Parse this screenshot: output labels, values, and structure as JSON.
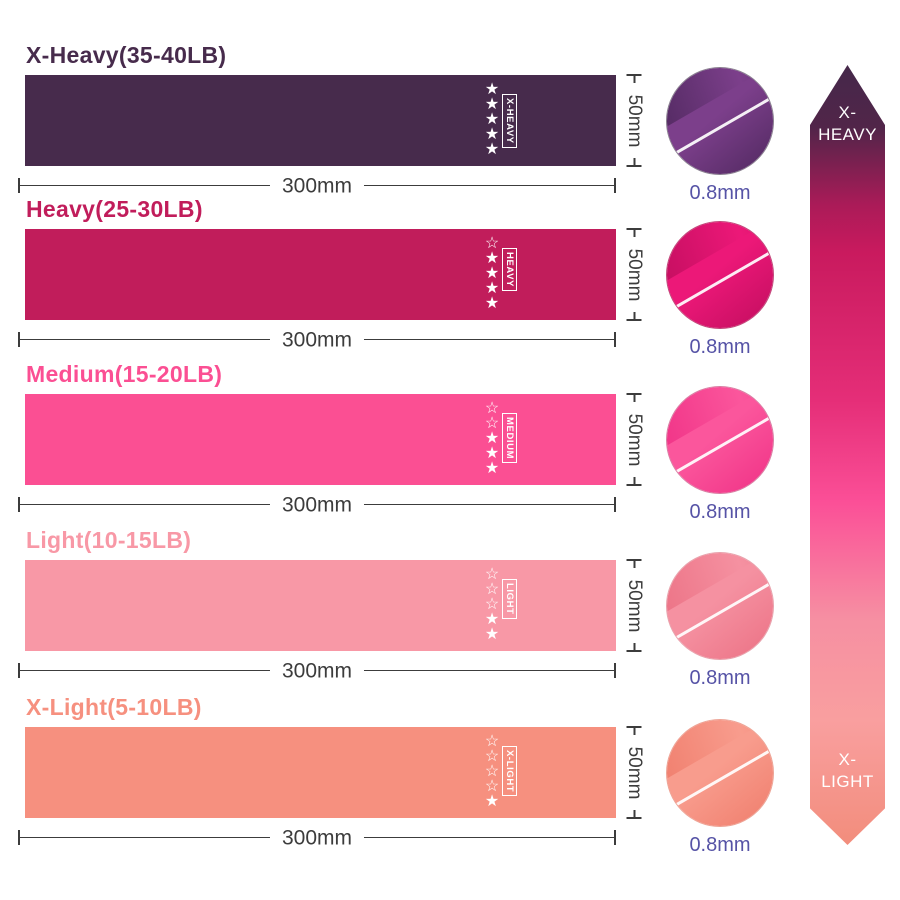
{
  "page": {
    "background": "#ffffff"
  },
  "icons": {
    "star_filled": "★",
    "star_outline": "☆"
  },
  "thickness_color": "#5653a6",
  "bands": [
    {
      "title": "X-Heavy(35-40LB)",
      "tag": "X-HEAVY",
      "stars_filled": 5,
      "stars_total": 5,
      "color": "#472b4c",
      "photo_main": "#7c3f8b",
      "photo_shade": "#532a62",
      "ring": "#8a8090",
      "width_label": "300mm",
      "height_label": "50mm",
      "thickness_label": "0.8mm"
    },
    {
      "title": "Heavy(25-30LB)",
      "tag": "HEAVY",
      "stars_filled": 4,
      "stars_total": 5,
      "color": "#c11d5b",
      "photo_main": "#ec1878",
      "photo_shade": "#c40e60",
      "ring": "#c2487a",
      "width_label": "300mm",
      "height_label": "50mm",
      "thickness_label": "0.8mm"
    },
    {
      "title": "Medium(15-20LB)",
      "tag": "MEDIUM",
      "stars_filled": 3,
      "stars_total": 5,
      "color": "#fb4f93",
      "photo_main": "#fb569c",
      "photo_shade": "#f03387",
      "ring": "#d87fa3",
      "width_label": "300mm",
      "height_label": "50mm",
      "thickness_label": "0.8mm"
    },
    {
      "title": "Light(10-15LB)",
      "tag": "LIGHT",
      "stars_filled": 2,
      "stars_total": 5,
      "color": "#f898a6",
      "photo_main": "#f591a1",
      "photo_shade": "#ec7386",
      "ring": "#e8a3ad",
      "width_label": "300mm",
      "height_label": "50mm",
      "thickness_label": "0.8mm"
    },
    {
      "title": "X-Light(5-10LB)",
      "tag": "X-LIGHT",
      "stars_filled": 1,
      "stars_total": 5,
      "color": "#f6907f",
      "photo_main": "#f89c8d",
      "photo_shade": "#f07f6e",
      "ring": "#eda496",
      "width_label": "300mm",
      "height_label": "50mm",
      "thickness_label": "0.8mm"
    }
  ],
  "scale_arrow": {
    "top_line1": "X-",
    "top_line2": "HEAVY",
    "bottom_line1": "X-",
    "bottom_line2": "LIGHT",
    "gradient_stops": [
      "#45284a 0%",
      "#512549 8%",
      "#ab1b58 18%",
      "#c91a5e 24%",
      "#e52e78 43%",
      "#fb4f97 56%",
      "#f68fa2 71%",
      "#f99f9f 84%",
      "#f28d7c 100%"
    ]
  }
}
